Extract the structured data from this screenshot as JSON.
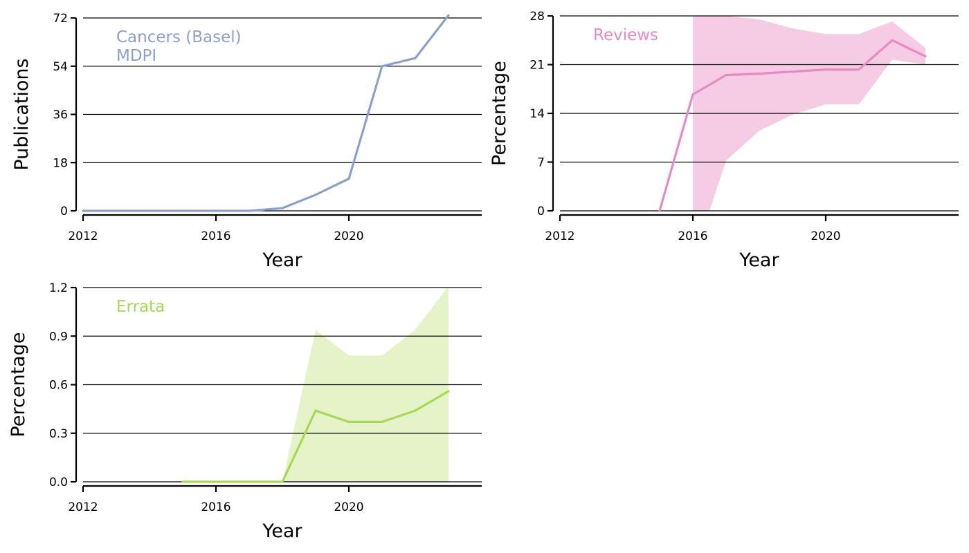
{
  "chart_data": [
    {
      "type": "line",
      "title": "",
      "xlabel": "Year",
      "ylabel": "Publications",
      "annotation": [
        "Cancers (Basel)",
        "MDPI"
      ],
      "color": "#8da0cb",
      "band_color": "",
      "xlim": [
        2012,
        2024
      ],
      "xticks": [
        2012,
        2016,
        2020
      ],
      "xtick_labels": [
        "2012",
        "2016",
        "2020"
      ],
      "ylim": [
        0,
        72
      ],
      "yticks": [
        0,
        18,
        36,
        54,
        72
      ],
      "ytick_labels": [
        "0",
        "18",
        "36",
        "54",
        "72"
      ],
      "grid": "horizontal",
      "series": [
        {
          "x": [
            2012,
            2013,
            2014,
            2015,
            2016,
            2017,
            2018,
            2019,
            2020,
            2021,
            2022,
            2023
          ],
          "values": [
            0,
            0,
            0,
            0,
            0,
            0,
            1,
            6,
            12,
            54,
            57,
            73
          ]
        }
      ]
    },
    {
      "type": "area",
      "title": "",
      "xlabel": "Year",
      "ylabel": "Percentage",
      "annotation": [
        "Reviews"
      ],
      "color": "#e78ac3",
      "band_color": "#f5cbe5",
      "xlim": [
        2012,
        2024
      ],
      "xticks": [
        2012,
        2016,
        2020
      ],
      "xtick_labels": [
        "2012",
        "2016",
        "2020"
      ],
      "ylim": [
        0,
        28
      ],
      "yticks": [
        0,
        7,
        14,
        21,
        28
      ],
      "ytick_labels": [
        "0",
        "7",
        "14",
        "21",
        "28"
      ],
      "grid": "horizontal",
      "series": [
        {
          "x": [
            2015,
            2016,
            2017,
            2018,
            2019,
            2020,
            2021,
            2022,
            2023
          ],
          "values": [
            0,
            16.7,
            19.5,
            19.7,
            20.0,
            20.3,
            20.3,
            24.5,
            22.2
          ]
        }
      ],
      "band": {
        "x": [
          2016,
          2016.5,
          2017,
          2018,
          2019,
          2020,
          2021,
          2022,
          2023
        ],
        "lower": [
          0,
          0,
          7.2,
          11.5,
          13.8,
          15.3,
          15.3,
          21.7,
          21.0
        ],
        "upper": [
          28,
          28,
          28,
          27.5,
          26.2,
          25.4,
          25.4,
          27.2,
          23.4
        ]
      }
    },
    {
      "type": "area",
      "title": "",
      "xlabel": "Year",
      "ylabel": "Percentage",
      "annotation": [
        "Errata"
      ],
      "color": "#a6d854",
      "band_color": "#e4f4c8",
      "xlim": [
        2012,
        2024
      ],
      "xticks": [
        2012,
        2016,
        2020
      ],
      "xtick_labels": [
        "2012",
        "2016",
        "2020"
      ],
      "ylim": [
        0,
        1.2
      ],
      "yticks": [
        0,
        0.3,
        0.6,
        0.9,
        1.2
      ],
      "ytick_labels": [
        "0.0",
        "0.3",
        "0.6",
        "0.9",
        "1.2"
      ],
      "grid": "horizontal",
      "series": [
        {
          "x": [
            2015,
            2016,
            2017,
            2018,
            2019,
            2020,
            2021,
            2022,
            2023
          ],
          "values": [
            0,
            0,
            0,
            0,
            0.44,
            0.37,
            0.37,
            0.44,
            0.56
          ]
        }
      ],
      "band": {
        "x": [
          2018,
          2019,
          2020,
          2021,
          2022,
          2023
        ],
        "lower": [
          0,
          0,
          0,
          0,
          0,
          0
        ],
        "upper": [
          0,
          0.94,
          0.78,
          0.78,
          0.94,
          1.21
        ]
      }
    }
  ]
}
